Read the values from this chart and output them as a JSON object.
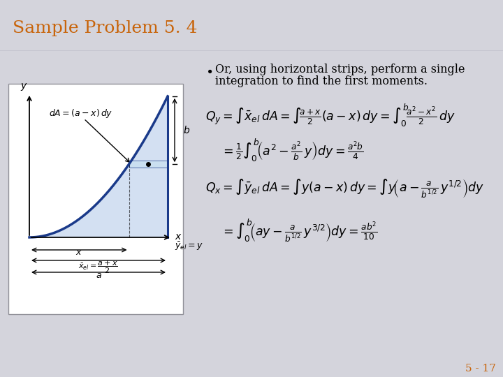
{
  "title": "Sample Problem 5. 4",
  "title_color": "#c8640a",
  "title_bg_top": "#c8c8d4",
  "title_bg_bot": "#d4d4de",
  "slide_bg": "#d4d4dc",
  "white": "#ffffff",
  "bullet_text_line1": "Or, using horizontal strips, perform a single",
  "bullet_text_line2": "integration to find the first moments.",
  "page_num": "5 - 17",
  "page_num_color": "#c8640a",
  "curve_color": "#1a3a8a",
  "fill_color": "#b0c8e8",
  "fill_alpha": 0.55,
  "strip_color": "#c8dff0",
  "strip_alpha": 0.8
}
